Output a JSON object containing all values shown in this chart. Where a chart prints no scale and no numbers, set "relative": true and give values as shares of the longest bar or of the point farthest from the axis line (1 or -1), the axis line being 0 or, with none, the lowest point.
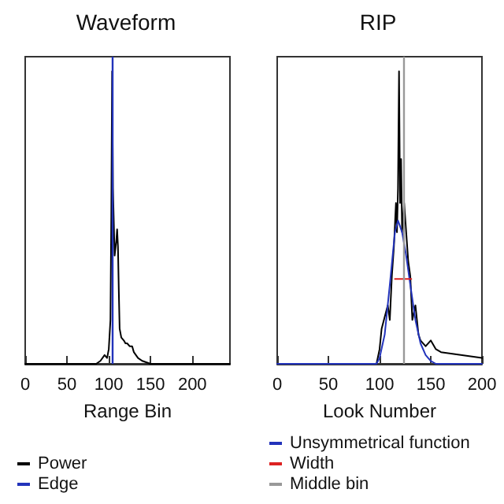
{
  "chart_data": [
    {
      "type": "line",
      "title": "Waveform",
      "xlabel": "Range Bin",
      "relative": true,
      "xlim": [
        0,
        245
      ],
      "xticks": [
        0,
        50,
        100,
        150,
        200
      ],
      "grid": false,
      "legend": "bottom",
      "marker": "none",
      "line_style": "solid",
      "x": [
        0,
        50,
        85,
        90,
        95,
        98,
        100,
        102,
        103,
        104,
        105,
        107,
        109,
        110,
        111,
        112,
        113,
        115,
        118,
        120,
        122,
        125,
        128,
        130,
        135,
        140,
        150,
        245
      ],
      "series": [
        {
          "name": "Power",
          "color": "#000000",
          "values": [
            0,
            0,
            0,
            0.01,
            0.03,
            0.02,
            0.05,
            0.15,
            0.5,
            1,
            0.6,
            0.37,
            0.42,
            0.46,
            0.4,
            0.25,
            0.12,
            0.09,
            0.08,
            0.07,
            0.07,
            0.06,
            0.06,
            0.04,
            0.02,
            0.01,
            0,
            0
          ]
        }
      ],
      "ref_lines": [
        {
          "axis": "x",
          "value": 104,
          "label": "Edge",
          "color": "#2233bb"
        }
      ]
    },
    {
      "type": "line",
      "title": "RIP",
      "xlabel": "Look Number",
      "relative": true,
      "xlim": [
        0,
        200
      ],
      "xticks": [
        0,
        50,
        100,
        150,
        200
      ],
      "grid": false,
      "legend": "bottom",
      "marker": "none",
      "line_style": "solid",
      "series": [
        {
          "color": "#000000",
          "x": [
            0,
            97,
            100,
            102,
            105,
            108,
            110,
            112,
            114,
            116,
            117,
            118,
            119,
            120,
            121,
            122,
            124,
            126,
            128,
            130,
            132,
            135,
            138,
            140,
            145,
            150,
            155,
            160,
            200
          ],
          "values": [
            0,
            0,
            0.05,
            0.12,
            0.16,
            0.2,
            0.15,
            0.3,
            0.4,
            0.55,
            0.45,
            0.6,
            1,
            0.55,
            0.7,
            0.45,
            0.55,
            0.45,
            0.35,
            0.3,
            0.15,
            0.2,
            0.1,
            0.08,
            0.06,
            0.08,
            0.05,
            0.04,
            0.02
          ]
        },
        {
          "name": "Unsymmetrical function",
          "color": "#2233bb",
          "x": [
            0,
            97,
            100,
            105,
            110,
            115,
            118,
            122,
            126,
            130,
            135,
            140,
            145,
            150,
            155,
            200
          ],
          "values": [
            0,
            0,
            0.02,
            0.1,
            0.27,
            0.45,
            0.49,
            0.45,
            0.37,
            0.27,
            0.15,
            0.07,
            0.03,
            0.01,
            0,
            0
          ]
        },
        {
          "name": "Width",
          "color": "#dd2222",
          "x": [
            115,
            131
          ],
          "values": [
            0.29,
            0.29
          ]
        }
      ],
      "ref_lines": [
        {
          "axis": "x",
          "value": 124,
          "label": "Middle bin",
          "color": "#999999"
        }
      ]
    }
  ]
}
